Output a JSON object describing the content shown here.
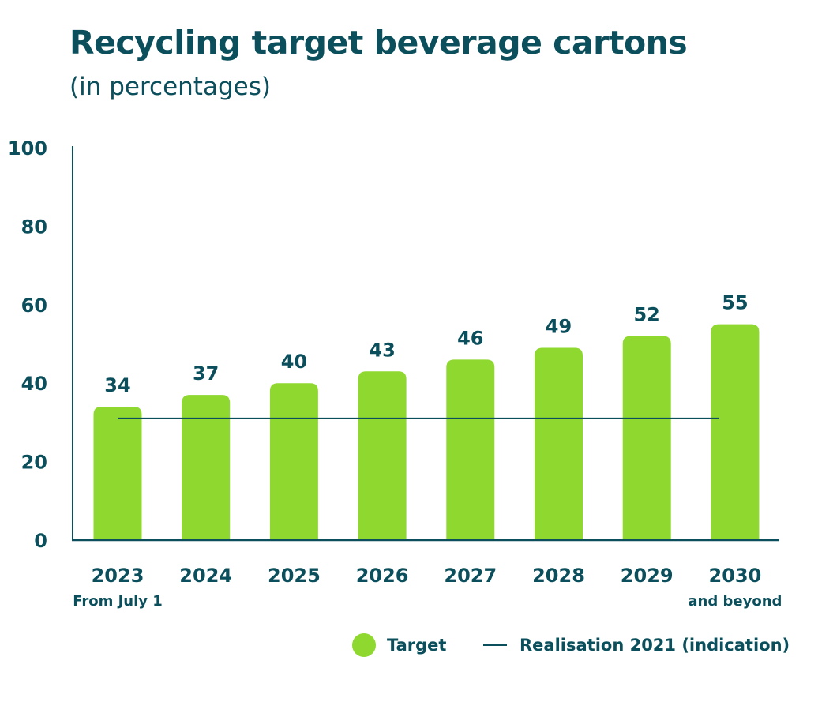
{
  "colors": {
    "bar": "#8fd830",
    "text": "#0b4f5c",
    "line": "#0b4f5c"
  },
  "chart_data": {
    "type": "bar",
    "title": "Recycling target beverage cartons",
    "subtitle": "(in percentages)",
    "xlabel": "",
    "ylabel": "",
    "ylim": [
      0,
      100
    ],
    "yticks": [
      "0",
      "20",
      "40",
      "60",
      "80",
      "100"
    ],
    "grid": false,
    "categories": [
      "2023",
      "2024",
      "2025",
      "2026",
      "2027",
      "2028",
      "2029",
      "2030"
    ],
    "category_sublabels": [
      "From July 1",
      "",
      "",
      "",
      "",
      "",
      "",
      "and beyond"
    ],
    "series": [
      {
        "name": "Target",
        "values": [
          34,
          37,
          40,
          43,
          46,
          49,
          52,
          55
        ]
      }
    ],
    "reference_line": {
      "name": "Realisation 2021 (indication)",
      "value": 31
    },
    "legend": {
      "position": "bottom-right",
      "items": [
        "Target",
        "Realisation 2021 (indication)"
      ]
    }
  }
}
